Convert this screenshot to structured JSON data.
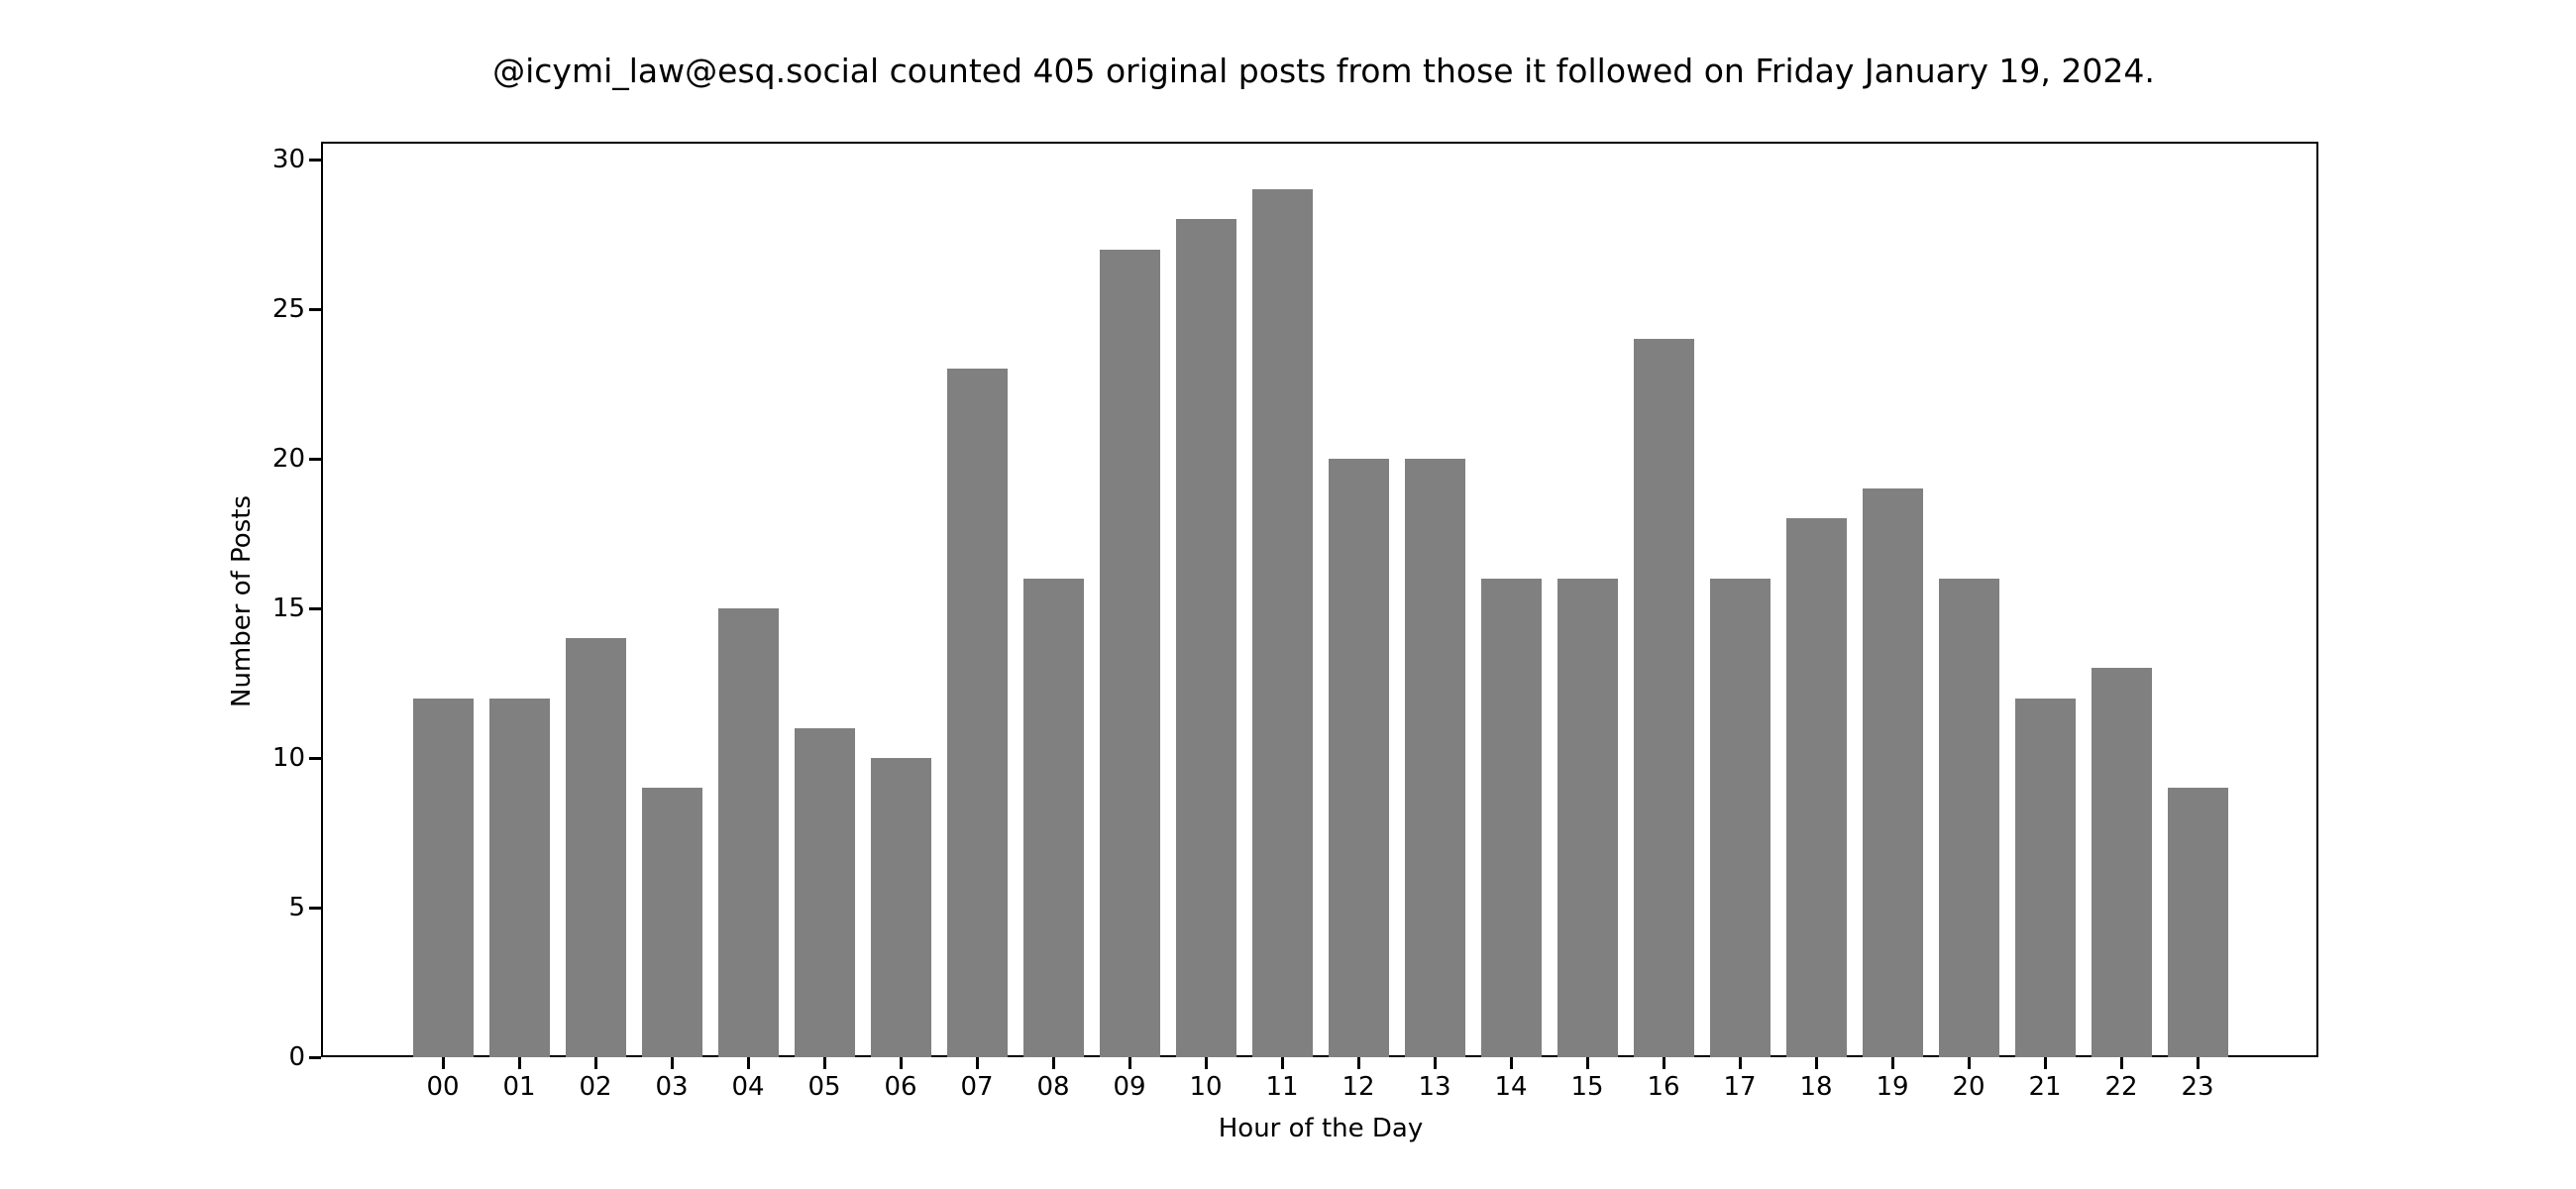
{
  "chart_data": {
    "type": "bar",
    "title": "@icymi_law@esq.social counted 405 original posts from those it followed on Friday January 19, 2024.",
    "xlabel": "Hour of the Day",
    "ylabel": "Number of Posts",
    "categories": [
      "00",
      "01",
      "02",
      "03",
      "04",
      "05",
      "06",
      "07",
      "08",
      "09",
      "10",
      "11",
      "12",
      "13",
      "14",
      "15",
      "16",
      "17",
      "18",
      "19",
      "20",
      "21",
      "22",
      "23"
    ],
    "values": [
      12,
      12,
      14,
      9,
      15,
      11,
      10,
      23,
      16,
      27,
      28,
      29,
      20,
      20,
      16,
      16,
      24,
      16,
      18,
      19,
      16,
      12,
      13,
      9
    ],
    "ylim": [
      0,
      30.5
    ],
    "yticks": [
      0,
      5,
      10,
      15,
      20,
      25,
      30
    ],
    "grid": false,
    "legend": null,
    "bar_color": "#808080"
  }
}
